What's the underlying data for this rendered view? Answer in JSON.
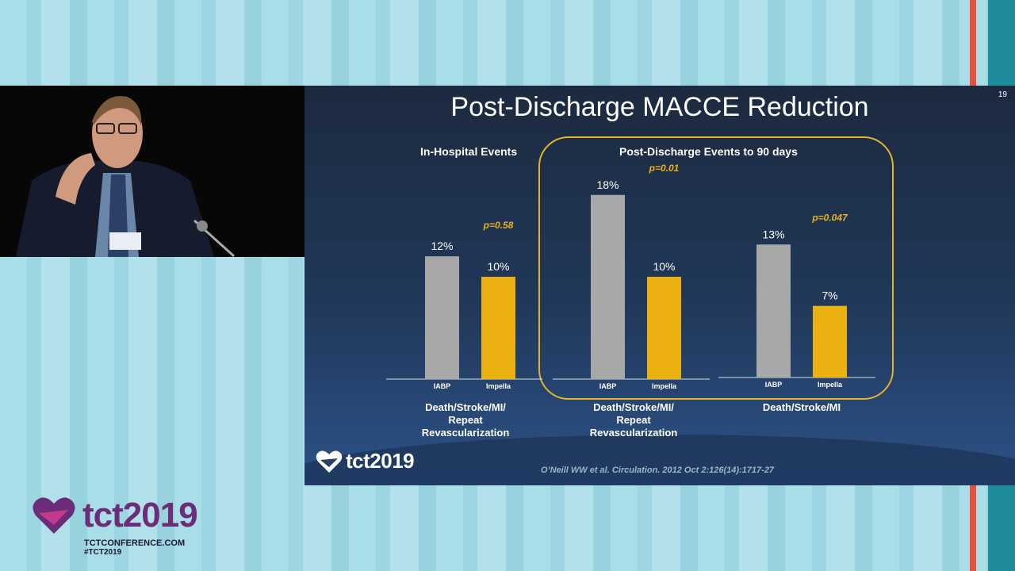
{
  "slide": {
    "title": "Post-Discharge MACCE Reduction",
    "slide_number": "19",
    "in_hospital_heading": "In-Hospital Events",
    "post_discharge_heading": "Post-Discharge Events to 90 days",
    "citation": "O’Neill WW et al. Circulation. 2012 Oct 2:126(14):1717-27",
    "logo_text": "tct2019"
  },
  "chart_data": [
    {
      "type": "bar",
      "panel": "In-Hospital Events",
      "categories": [
        "IABP",
        "Impella"
      ],
      "values": [
        12,
        10
      ],
      "value_labels": [
        "12%",
        "10%"
      ],
      "p_value": "p=0.58",
      "outcome_lines": [
        "Death/Stroke/MI/",
        "Repeat",
        "Revascularization"
      ],
      "ylim": [
        0,
        20
      ]
    },
    {
      "type": "bar",
      "panel": "Post-Discharge Events to 90 days",
      "categories": [
        "IABP",
        "Impella"
      ],
      "values": [
        18,
        10
      ],
      "value_labels": [
        "18%",
        "10%"
      ],
      "p_value": "p=0.01",
      "outcome_lines": [
        "Death/Stroke/MI/",
        "Repeat",
        "Revascularization"
      ],
      "ylim": [
        0,
        20
      ]
    },
    {
      "type": "bar",
      "panel": "Post-Discharge Events to 90 days",
      "categories": [
        "IABP",
        "Impella"
      ],
      "values": [
        13,
        7
      ],
      "value_labels": [
        "13%",
        "7%"
      ],
      "p_value": "p=0.047",
      "outcome_lines": [
        "Death/Stroke/MI"
      ],
      "ylim": [
        0,
        20
      ]
    }
  ],
  "colors": {
    "iabp": "#a8a8a8",
    "impella": "#ebb110",
    "p_value": "#e8b320",
    "highlight_border": "#e6b325",
    "brand_purple": "#6b2d78"
  },
  "footer": {
    "logo_text": "tct2019",
    "site": "TCTCONFERENCE.COM",
    "hashtag": "#TCT2019"
  },
  "icons": {
    "slide_logo": "heart-logo-icon",
    "footer_logo": "heart-logo-icon"
  }
}
